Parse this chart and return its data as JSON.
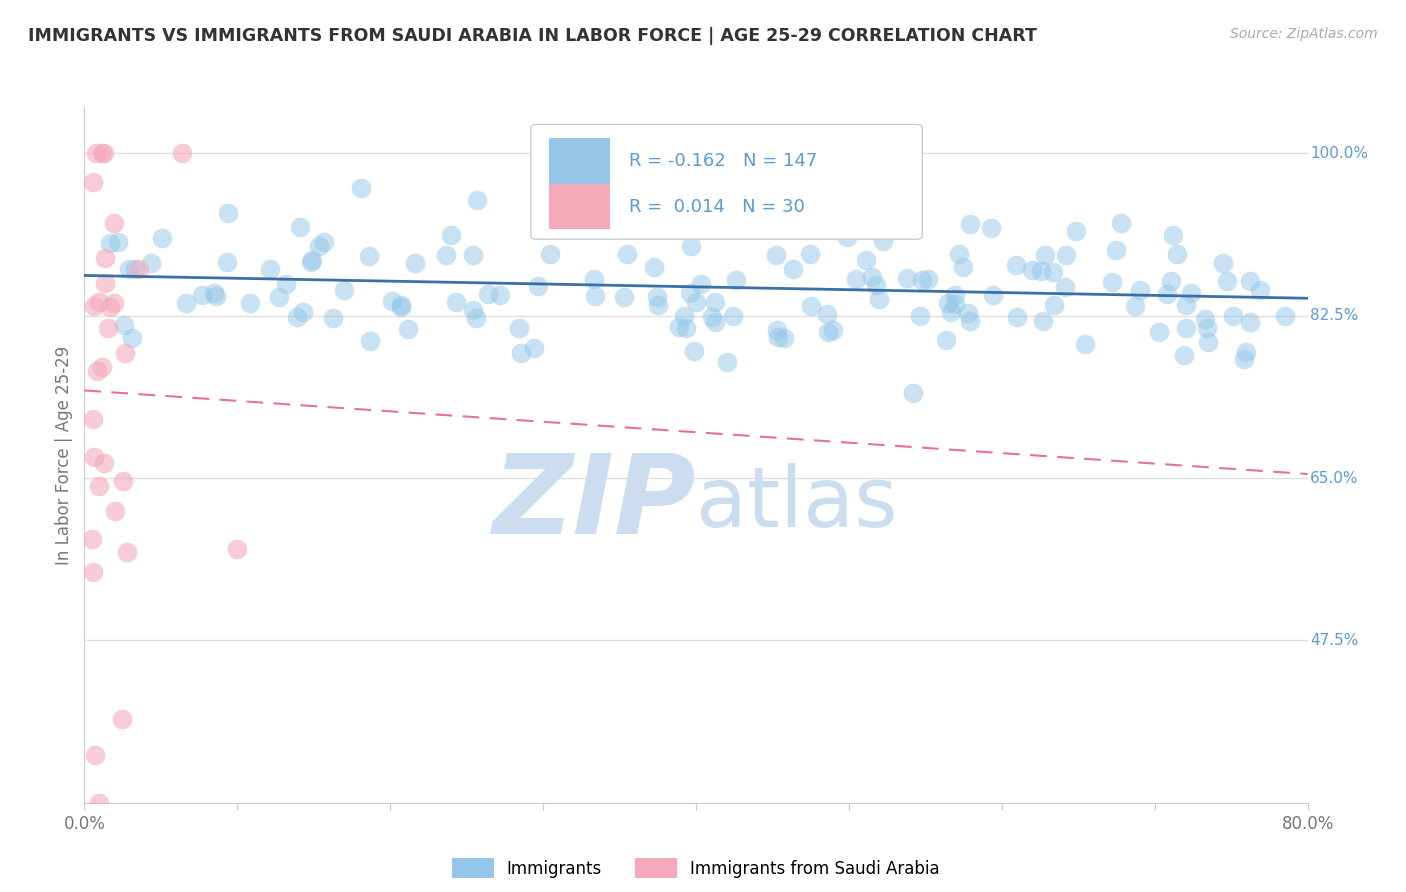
{
  "title": "IMMIGRANTS VS IMMIGRANTS FROM SAUDI ARABIA IN LABOR FORCE | AGE 25-29 CORRELATION CHART",
  "source_text": "Source: ZipAtlas.com",
  "ylabel": "In Labor Force | Age 25-29",
  "x_min": 0.0,
  "x_max": 0.8,
  "y_min": 0.3,
  "y_max": 1.05,
  "y_tick_positions": [
    1.0,
    0.825,
    0.65,
    0.475
  ],
  "y_tick_labels": [
    "100.0%",
    "82.5%",
    "65.0%",
    "47.5%"
  ],
  "blue_R": -0.162,
  "blue_N": 147,
  "pink_R": 0.014,
  "pink_N": 30,
  "blue_color": "#93C6E8",
  "pink_color": "#F4AABB",
  "blue_line_color": "#3A6FA8",
  "pink_line_color": "#E87090",
  "legend_label_blue": "Immigrants",
  "legend_label_pink": "Immigrants from Saudi Arabia",
  "background_color": "#ffffff",
  "grid_color": "#E0E0E0",
  "text_color": "#333333",
  "axis_label_color": "#777777",
  "right_tick_color": "#5B9BD5"
}
